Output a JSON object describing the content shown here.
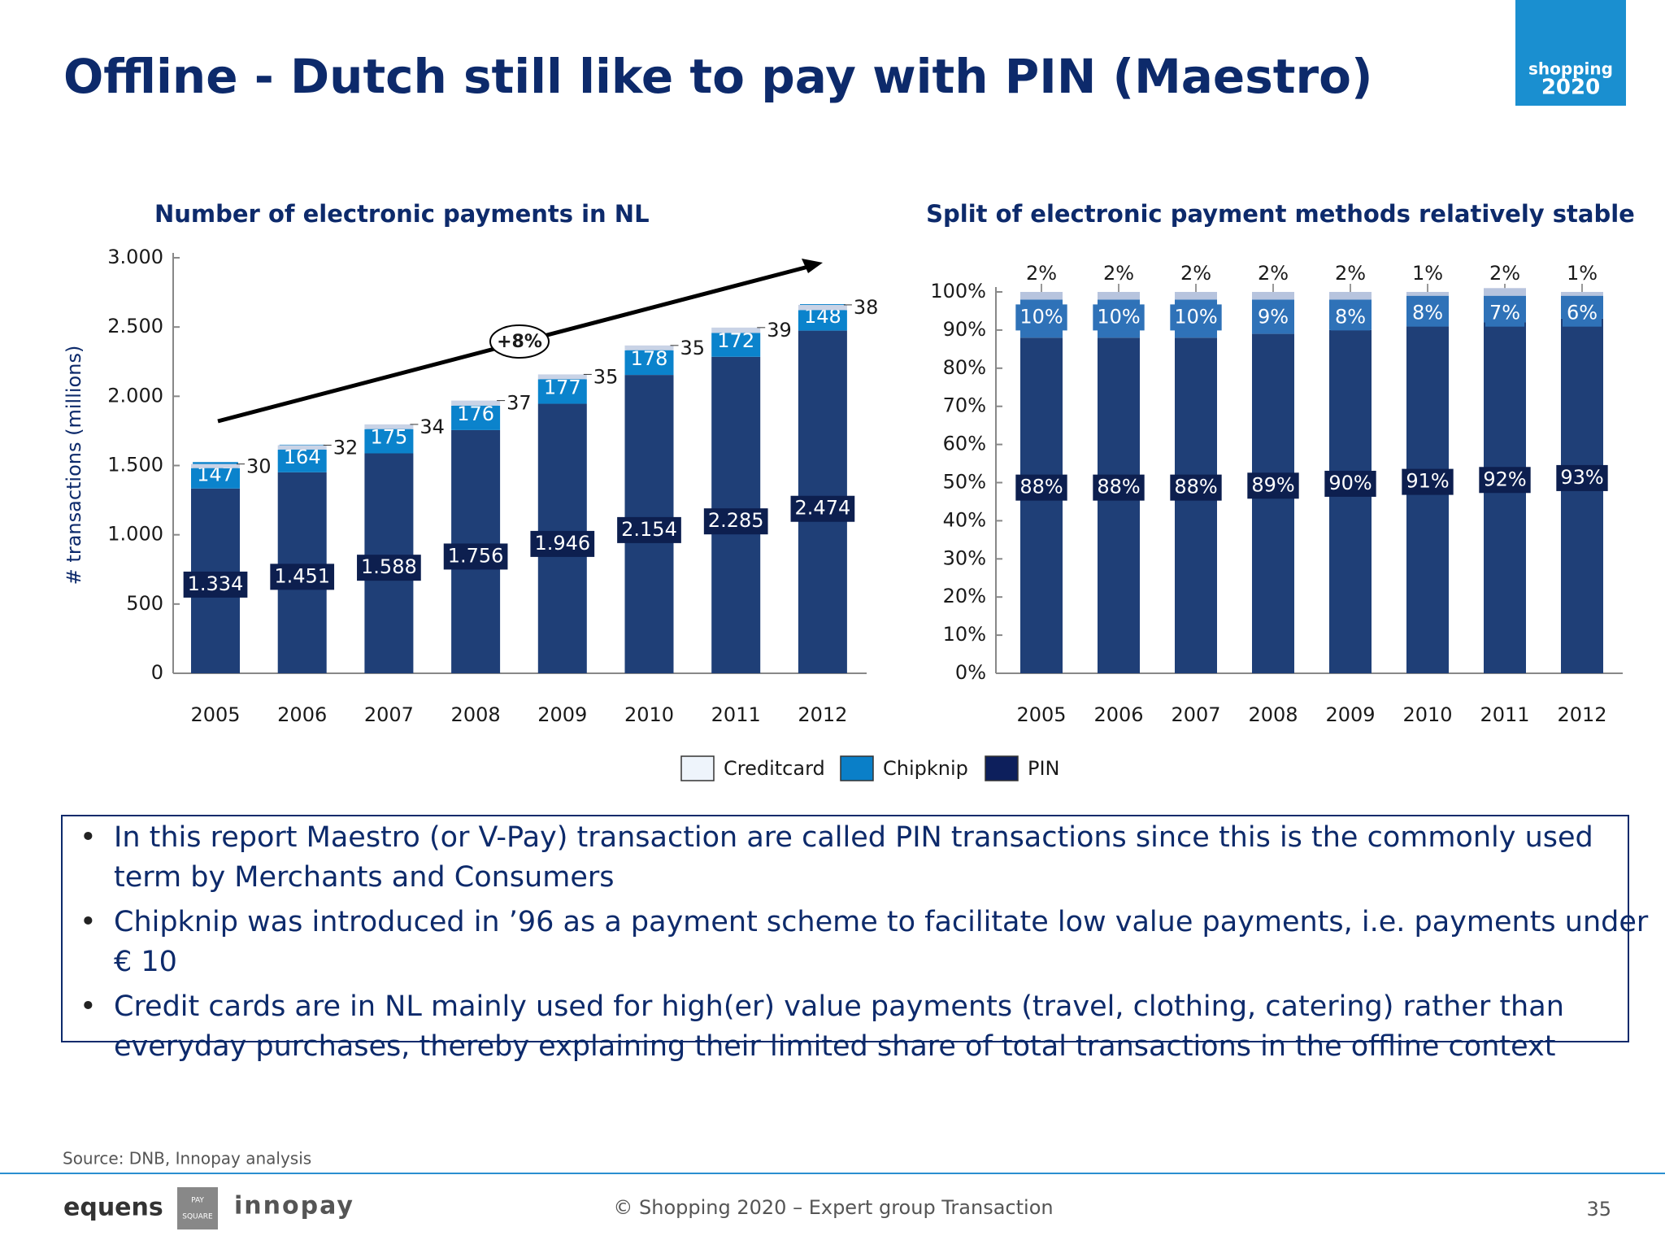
{
  "title": "Offline - Dutch still like to pay with PIN (Maestro)",
  "logo": {
    "line1": "shopping",
    "line2": "2020"
  },
  "chart_data": [
    {
      "type": "bar",
      "stacked": true,
      "title": "Number of electronic payments in NL",
      "ylabel": "# transactions (millions)",
      "annotation": "+8%",
      "categories": [
        "2005",
        "2006",
        "2007",
        "2008",
        "2009",
        "2010",
        "2011",
        "2012"
      ],
      "ylim": [
        0,
        3000
      ],
      "yticks": [
        0,
        500,
        {
          "value": 1000,
          "label": "1.000"
        },
        {
          "value": 1500,
          "label": "1.500"
        },
        {
          "value": 2000,
          "label": "2.000"
        },
        {
          "value": 2500,
          "label": "2.500"
        },
        {
          "value": 3000,
          "label": "3.000"
        }
      ],
      "series": [
        {
          "name": "Creditcard",
          "color": "#c9d3e6",
          "legend_color": "#eef4fb",
          "values": [
            30,
            32,
            34,
            37,
            35,
            35,
            39,
            38
          ]
        },
        {
          "name": "Chipknip",
          "color": "#0b83cc",
          "legend_color": "#0a7fc8",
          "values": [
            147,
            164,
            175,
            176,
            177,
            178,
            172,
            148
          ]
        },
        {
          "name": "PIN",
          "color": "#1f3f77",
          "legend_color": "#0d1f5c",
          "values": [
            1334,
            1451,
            1588,
            1756,
            1946,
            2154,
            2285,
            2474
          ],
          "value_labels": [
            "1.334",
            "1.451",
            "1.588",
            "1.756",
            "1.946",
            "2.154",
            "2.285",
            "2.474"
          ]
        }
      ]
    },
    {
      "type": "bar",
      "stacked": true,
      "title": "Split of electronic payment methods relatively stable",
      "categories": [
        "2005",
        "2006",
        "2007",
        "2008",
        "2009",
        "2010",
        "2011",
        "2012"
      ],
      "ylim": [
        0,
        100
      ],
      "yticks": [
        {
          "value": 0,
          "label": "0%"
        },
        {
          "value": 10,
          "label": "10%"
        },
        {
          "value": 20,
          "label": "20%"
        },
        {
          "value": 30,
          "label": "30%"
        },
        {
          "value": 40,
          "label": "40%"
        },
        {
          "value": 50,
          "label": "50%"
        },
        {
          "value": 60,
          "label": "60%"
        },
        {
          "value": 70,
          "label": "70%"
        },
        {
          "value": 80,
          "label": "80%"
        },
        {
          "value": 90,
          "label": "90%"
        },
        {
          "value": 100,
          "label": "100%"
        }
      ],
      "series": [
        {
          "color": "#b7c4de",
          "values": [
            2,
            2,
            2,
            2,
            2,
            1,
            2,
            1
          ],
          "value_labels": [
            "2%",
            "2%",
            "2%",
            "2%",
            "2%",
            "1%",
            "2%",
            "1%"
          ]
        },
        {
          "color": "#2f72b8",
          "values": [
            10,
            10,
            10,
            9,
            8,
            8,
            7,
            6
          ],
          "value_labels": [
            "10%",
            "10%",
            "10%",
            "9%",
            "8%",
            "8%",
            "7%",
            "6%"
          ]
        },
        {
          "color": "#1f3f77",
          "values": [
            88,
            88,
            88,
            89,
            90,
            91,
            92,
            93
          ],
          "value_labels": [
            "88%",
            "88%",
            "88%",
            "89%",
            "90%",
            "91%",
            "92%",
            "93%"
          ]
        }
      ]
    }
  ],
  "bullets": [
    "In this report Maestro (or V-Pay) transaction are called PIN transactions since this is the commonly used term by Merchants and Consumers",
    "Chipknip was introduced in ’96 as a payment scheme to facilitate low value payments, i.e. payments under € 10",
    "Credit cards are in NL mainly used for high(er) value payments (travel, clothing, catering) rather than everyday purchases, thereby explaining their limited share of total transactions in the offline context"
  ],
  "source": "Source: DNB, Innopay analysis",
  "footer": {
    "text": "© Shopping 2020 – Expert group Transaction",
    "page": "35",
    "logo_left": "equens",
    "logo_mid_top": "PAY",
    "logo_mid_bottom": "SQUARE",
    "logo_right": "innopay"
  }
}
